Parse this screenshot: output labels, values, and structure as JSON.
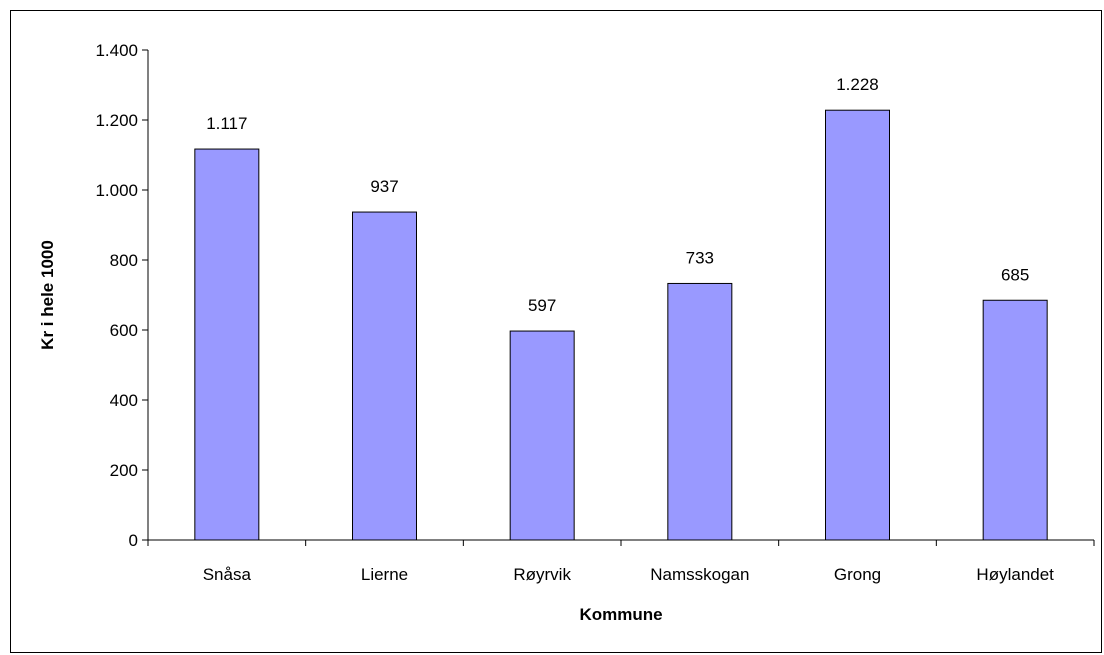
{
  "chart_data": {
    "type": "bar",
    "categories": [
      "Snåsa",
      "Lierne",
      "Røyrvik",
      "Namsskogan",
      "Grong",
      "Høylandet"
    ],
    "values": [
      1117,
      937,
      597,
      733,
      1228,
      685
    ],
    "data_labels": [
      "1.117",
      "937",
      "597",
      "733",
      "1.228",
      "685"
    ],
    "xlabel": "Kommune",
    "ylabel": "Kr i hele 1000",
    "ylim": [
      0,
      1400
    ],
    "y_ticks": [
      0,
      200,
      400,
      600,
      800,
      1000,
      1200,
      1400
    ],
    "y_tick_labels": [
      "0",
      "200",
      "400",
      "600",
      "800",
      "1.000",
      "1.200",
      "1.400"
    ],
    "grid": false,
    "legend": "none",
    "bar_color": "#9999ff"
  }
}
